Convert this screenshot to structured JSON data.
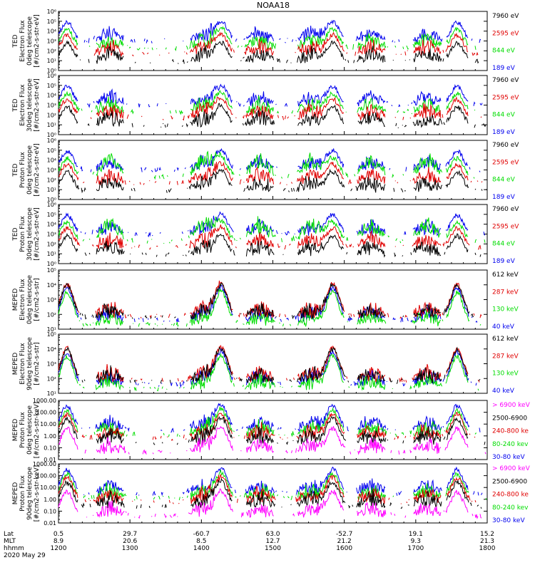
{
  "title": "NOAA18",
  "colors": {
    "black": "#000000",
    "red": "#e00000",
    "green": "#00dd00",
    "blue": "#0000ee",
    "magenta": "#ff00ff"
  },
  "footer": {
    "row_labels": [
      "Lat",
      "MLT",
      "hhmm"
    ],
    "date": "2020 May 29",
    "ticks": [
      {
        "lat": "0.5",
        "mlt": "8.9",
        "hhmm": "1200"
      },
      {
        "lat": "29.7",
        "mlt": "20.6",
        "hhmm": "1300"
      },
      {
        "lat": "-60.7",
        "mlt": "8.5",
        "hhmm": "1400"
      },
      {
        "lat": "63.0",
        "mlt": "12.7",
        "hhmm": "1500"
      },
      {
        "lat": "-52.7",
        "mlt": "21.2",
        "hhmm": "1600"
      },
      {
        "lat": "19.1",
        "mlt": "9.3",
        "hhmm": "1700"
      },
      {
        "lat": "15.2",
        "mlt": "21.3",
        "hhmm": "1800"
      }
    ]
  },
  "chart_data": [
    {
      "type": "line",
      "panel": "TED electron 0deg",
      "ylabel": [
        "TED",
        "Electron Flux",
        "0deg telescope",
        "[#/cm2-s-str-eV]"
      ],
      "yscale": "log",
      "ytick_labels": [
        "10⁰",
        "10¹",
        "10²",
        "10³",
        "10⁴",
        "10⁵",
        "10⁶"
      ],
      "ytick_values": [
        1,
        10,
        100,
        1000,
        10000,
        100000,
        1000000
      ],
      "ylim": [
        1,
        1000000
      ],
      "xlim": [
        "12:00",
        "18:00"
      ],
      "series": [
        {
          "name": "7960 eV",
          "color": "black"
        },
        {
          "name": "2595 eV",
          "color": "red"
        },
        {
          "name": "844 eV",
          "color": "green"
        },
        {
          "name": "189 eV",
          "color": "blue"
        }
      ]
    },
    {
      "type": "line",
      "panel": "TED electron 30deg",
      "ylabel": [
        "TED",
        "Electron Flux",
        "30deg telescope",
        "[#/cm2-s-str-eV]"
      ],
      "yscale": "log",
      "ytick_labels": [
        "10⁰",
        "10¹",
        "10²",
        "10³",
        "10⁴",
        "10⁵",
        "10⁶"
      ],
      "ytick_values": [
        1,
        10,
        100,
        1000,
        10000,
        100000,
        1000000
      ],
      "ylim": [
        1,
        1000000
      ],
      "xlim": [
        "12:00",
        "18:00"
      ],
      "series": [
        {
          "name": "7960 eV",
          "color": "black"
        },
        {
          "name": "2595 eV",
          "color": "red"
        },
        {
          "name": "844 eV",
          "color": "green"
        },
        {
          "name": "189 eV",
          "color": "blue"
        }
      ]
    },
    {
      "type": "line",
      "panel": "TED proton 0deg",
      "ylabel": [
        "TED",
        "Proton Flux",
        "0deg telescope",
        "[#/cm2-s-str-eV]"
      ],
      "yscale": "log",
      "ytick_labels": [
        "10⁰",
        "10¹",
        "10²",
        "10³",
        "10⁴",
        "10⁵",
        "10⁶"
      ],
      "ytick_values": [
        1,
        10,
        100,
        1000,
        10000,
        100000,
        1000000
      ],
      "ylim": [
        1,
        1000000
      ],
      "xlim": [
        "12:00",
        "18:00"
      ],
      "series": [
        {
          "name": "7960 eV",
          "color": "black"
        },
        {
          "name": "2595 eV",
          "color": "red"
        },
        {
          "name": "844 eV",
          "color": "green"
        },
        {
          "name": "189 eV",
          "color": "blue"
        }
      ]
    },
    {
      "type": "line",
      "panel": "TED proton 30deg",
      "ylabel": [
        "TED",
        "Proton Flux",
        "30deg telescope",
        "[#/cm2-s-str-eV]"
      ],
      "yscale": "log",
      "ytick_labels": [
        "10⁰",
        "10¹",
        "10²",
        "10³",
        "10⁴",
        "10⁵",
        "10⁶"
      ],
      "ytick_values": [
        1,
        10,
        100,
        1000,
        10000,
        100000,
        1000000
      ],
      "ylim": [
        1,
        1000000
      ],
      "xlim": [
        "12:00",
        "18:00"
      ],
      "series": [
        {
          "name": "7960 eV",
          "color": "black"
        },
        {
          "name": "2595 eV",
          "color": "red"
        },
        {
          "name": "844 eV",
          "color": "green"
        },
        {
          "name": "189 eV",
          "color": "blue"
        }
      ]
    },
    {
      "type": "line",
      "panel": "MEPED electron 0deg",
      "ylabel": [
        "MEPED",
        "Electron Flux",
        "0deg telescope",
        "[#/cm2-s-str]"
      ],
      "yscale": "log",
      "ytick_labels": [
        "10¹",
        "10²",
        "10³",
        "10⁴",
        "10⁵"
      ],
      "ytick_values": [
        10,
        100,
        1000,
        10000,
        100000
      ],
      "ylim": [
        10,
        100000
      ],
      "xlim": [
        "12:00",
        "18:00"
      ],
      "series": [
        {
          "name": "612 keV",
          "color": "black"
        },
        {
          "name": "287 keV",
          "color": "red"
        },
        {
          "name": "130 keV",
          "color": "green"
        },
        {
          "name": "40 keV",
          "color": "blue"
        }
      ]
    },
    {
      "type": "line",
      "panel": "MEPED electron 90deg",
      "ylabel": [
        "MEPED",
        "Electron Flux",
        "90deg telescope",
        "[#/cm2-s-str]"
      ],
      "yscale": "log",
      "ytick_labels": [
        "10¹",
        "10²",
        "10³",
        "10⁴",
        "10⁵"
      ],
      "ytick_values": [
        10,
        100,
        1000,
        10000,
        100000
      ],
      "ylim": [
        10,
        100000
      ],
      "xlim": [
        "12:00",
        "18:00"
      ],
      "series": [
        {
          "name": "612 keV",
          "color": "black"
        },
        {
          "name": "287 keV",
          "color": "red"
        },
        {
          "name": "130 keV",
          "color": "green"
        },
        {
          "name": "40 keV",
          "color": "blue"
        }
      ]
    },
    {
      "type": "line",
      "panel": "MEPED proton 0deg",
      "ylabel": [
        "MEPED",
        "Proton Flux",
        "0deg telescope",
        "[#/cm2-s-str-keV]"
      ],
      "yscale": "log",
      "ytick_labels": [
        "0.01",
        "0.10",
        "1.00",
        "10.00",
        "100.00",
        "1000.00"
      ],
      "ytick_values": [
        0.01,
        0.1,
        1,
        10,
        100,
        1000
      ],
      "ylim": [
        0.01,
        1000
      ],
      "xlim": [
        "12:00",
        "18:00"
      ],
      "series": [
        {
          "name": "> 6900 keV",
          "color": "magenta"
        },
        {
          "name": "2500-6900",
          "color": "black"
        },
        {
          "name": "240-800 ke",
          "color": "red"
        },
        {
          "name": "80-240 kev",
          "color": "green"
        },
        {
          "name": "30-80 keV",
          "color": "blue"
        }
      ]
    },
    {
      "type": "line",
      "panel": "MEPED proton 90deg",
      "ylabel": [
        "MEPED",
        "Proton Flux",
        "90deg telescope",
        "[#/cm2-s-str-keV]"
      ],
      "yscale": "log",
      "ytick_labels": [
        "0.01",
        "0.10",
        "1.00",
        "10.00",
        "100.00",
        "1000.00"
      ],
      "ytick_values": [
        0.01,
        0.1,
        1,
        10,
        100,
        1000
      ],
      "ylim": [
        0.01,
        1000
      ],
      "xlim": [
        "12:00",
        "18:00"
      ],
      "series": [
        {
          "name": "> 6900 keV",
          "color": "magenta"
        },
        {
          "name": "2500-6900",
          "color": "black"
        },
        {
          "name": "240-800 ke",
          "color": "red"
        },
        {
          "name": "80-240 kev",
          "color": "green"
        },
        {
          "name": "30-80 keV",
          "color": "blue"
        }
      ]
    }
  ]
}
